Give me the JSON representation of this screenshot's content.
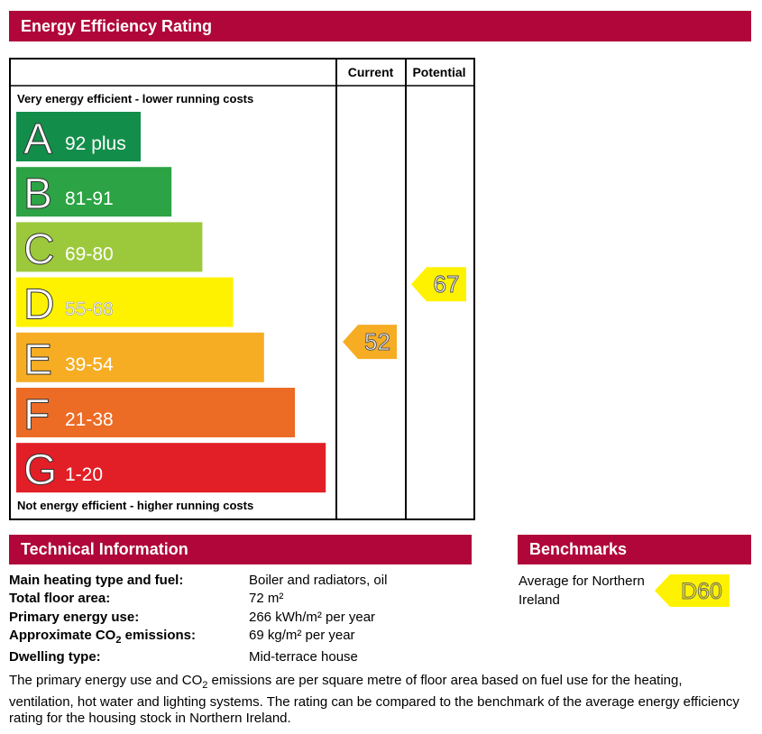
{
  "header": {
    "title": "Energy Efficiency Rating"
  },
  "chart_data": {
    "type": "bar",
    "title": "Energy Efficiency Rating",
    "columns": [
      "Current",
      "Potential"
    ],
    "top_label": "Very energy efficient - lower running costs",
    "bottom_label": "Not energy efficient - higher running costs",
    "bands": [
      {
        "letter": "A",
        "range": "92 plus",
        "color": "#138e4a",
        "range_color": "#ffffff"
      },
      {
        "letter": "B",
        "range": "81-91",
        "color": "#2ca344",
        "range_color": "#ffffff"
      },
      {
        "letter": "C",
        "range": "69-80",
        "color": "#9cc93c",
        "range_color": "#ffffff"
      },
      {
        "letter": "D",
        "range": "55-68",
        "color": "#fef200",
        "range_color": "#ffffff"
      },
      {
        "letter": "E",
        "range": "39-54",
        "color": "#f6ad23",
        "range_color": "#ffffff"
      },
      {
        "letter": "F",
        "range": "21-38",
        "color": "#ec6b25",
        "range_color": "#ffffff"
      },
      {
        "letter": "G",
        "range": "1-20",
        "color": "#e21f26",
        "range_color": "#ffffff"
      }
    ],
    "current": {
      "value": 52,
      "label": "52",
      "color": "#f6ad23"
    },
    "potential": {
      "value": 67,
      "label": "67",
      "color": "#fef200"
    }
  },
  "technical": {
    "title": "Technical Information",
    "rows": [
      {
        "label": "Main heating type and fuel:",
        "value": "Boiler and radiators, oil"
      },
      {
        "label": "Total floor area:",
        "value": "72 m²"
      },
      {
        "label": "Primary energy use:",
        "value": "266 kWh/m² per year"
      },
      {
        "label_pre": "Approximate CO",
        "label_sub": "2",
        "label_post": " emissions:",
        "value": "69 kg/m² per year"
      },
      {
        "label": "Dwelling type:",
        "value": "Mid-terrace house"
      }
    ],
    "note_pre": "The primary energy use and CO",
    "note_sub": "2",
    "note_post": " emissions are per square metre of floor area based on fuel use for the heating, ventilation, hot water and lighting systems. The rating can be compared to the benchmark of the average energy efficiency rating for the housing stock in Northern Ireland."
  },
  "benchmarks": {
    "title": "Benchmarks",
    "text": "Average for Northern Ireland",
    "rating": "D60",
    "color": "#fef200"
  }
}
